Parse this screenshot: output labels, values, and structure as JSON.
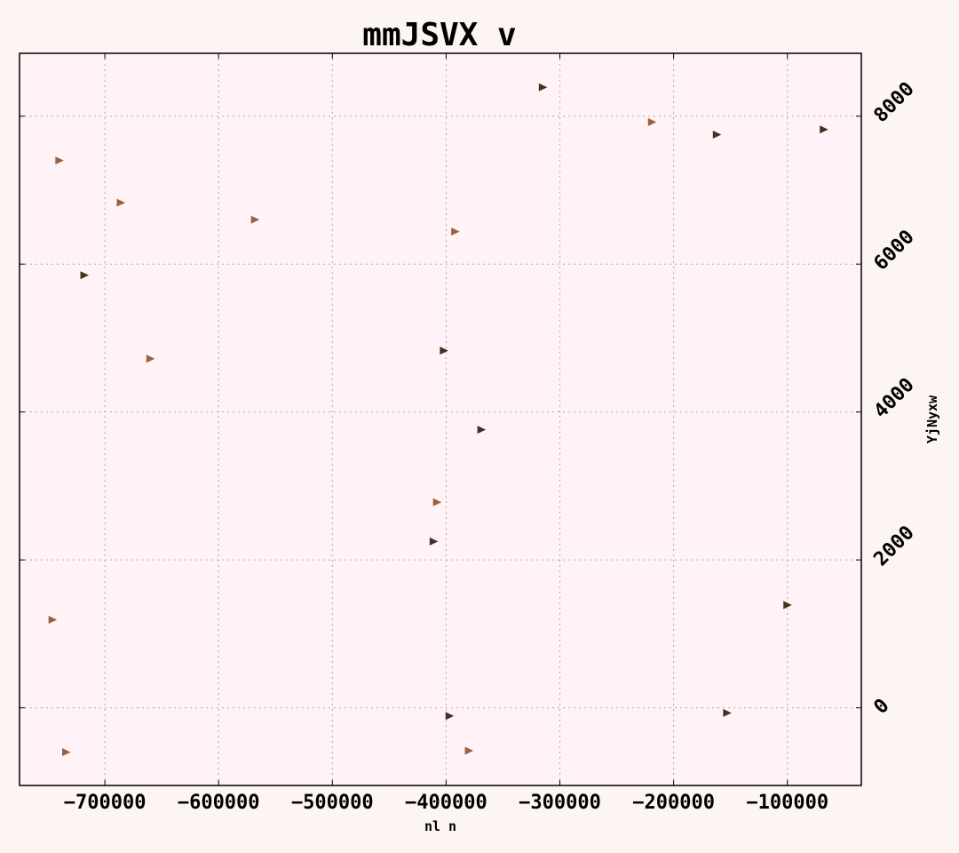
{
  "chart_data": {
    "type": "scatter",
    "title": "mmJSVX v",
    "xlabel": "nl n",
    "ylabel": "YjNyxw",
    "xlim": [
      -775000,
      -35000
    ],
    "ylim": [
      -1050,
      8850
    ],
    "xticks": [
      -700000,
      -600000,
      -500000,
      -400000,
      -300000,
      -200000,
      -100000
    ],
    "xtick_labels": [
      "−700000",
      "−600000",
      "−500000",
      "−400000",
      "−300000",
      "−200000",
      "−100000"
    ],
    "yticks": [
      0,
      2000,
      4000,
      6000,
      8000
    ],
    "ytick_labels": [
      "0",
      "2000",
      "4000",
      "6000",
      "8000"
    ],
    "grid": true,
    "y_axis_side": "right",
    "marker": "triangle-right",
    "colors": {
      "light": "#9e5f3c",
      "dark": "#4a2e22",
      "plot_bg": "#fff3f8",
      "page_bg": "#fcf5f2"
    },
    "points": [
      {
        "x": -740000,
        "y": 7400,
        "shade": "light"
      },
      {
        "x": -686000,
        "y": 6830,
        "shade": "light"
      },
      {
        "x": -718000,
        "y": 5850,
        "shade": "dark"
      },
      {
        "x": -660000,
        "y": 4720,
        "shade": "light"
      },
      {
        "x": -746000,
        "y": 1190,
        "shade": "light"
      },
      {
        "x": -734000,
        "y": -600,
        "shade": "light"
      },
      {
        "x": -568000,
        "y": 6600,
        "shade": "light"
      },
      {
        "x": -392000,
        "y": 6440,
        "shade": "light"
      },
      {
        "x": -402000,
        "y": 4830,
        "shade": "dark"
      },
      {
        "x": -369000,
        "y": 3760,
        "shade": "dark"
      },
      {
        "x": -408000,
        "y": 2780,
        "shade": "light"
      },
      {
        "x": -411000,
        "y": 2250,
        "shade": "dark"
      },
      {
        "x": -397000,
        "y": -110,
        "shade": "dark"
      },
      {
        "x": -380000,
        "y": -580,
        "shade": "light"
      },
      {
        "x": -315000,
        "y": 8390,
        "shade": "dark"
      },
      {
        "x": -219000,
        "y": 7920,
        "shade": "light"
      },
      {
        "x": -162000,
        "y": 7750,
        "shade": "dark"
      },
      {
        "x": -68000,
        "y": 7820,
        "shade": "dark"
      },
      {
        "x": -100000,
        "y": 1390,
        "shade": "dark"
      },
      {
        "x": -153000,
        "y": -70,
        "shade": "dark"
      }
    ]
  }
}
